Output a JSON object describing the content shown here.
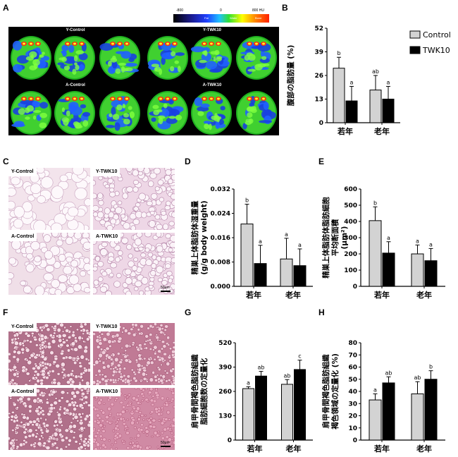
{
  "panel_letters": [
    "A",
    "B",
    "C",
    "D",
    "E",
    "F",
    "G",
    "H"
  ],
  "colorbar": {
    "labels": [
      "-800",
      "0",
      "800 HU"
    ],
    "inner_labels": [
      "Fat",
      "Water",
      "Bone"
    ]
  },
  "ct_headers": [
    "Y-Control",
    "Y-TWK10",
    "A-Control",
    "A-TWK10"
  ],
  "histo_labels_c": [
    "Y-Control",
    "Y-TWK10",
    "A-Control",
    "A-TWK10"
  ],
  "histo_labels_f": [
    "Y-Control",
    "Y-TWK10",
    "A-Control",
    "A-TWK10"
  ],
  "scale_bar": "50μm",
  "legend": [
    "Control",
    "TWK10"
  ],
  "colors": {
    "control": "#d3d3d3",
    "twk10": "#000000"
  },
  "chart_data": [
    {
      "id": "B",
      "type": "bar",
      "categories": [
        "若年",
        "老年"
      ],
      "ylabel": "腹部の脂肪量 (%)",
      "yticks": [
        "0",
        "13",
        "26",
        "39",
        "52"
      ],
      "ylim": [
        0,
        52
      ],
      "series": [
        {
          "name": "Control",
          "values": [
            30,
            18
          ],
          "err": [
            6,
            8
          ]
        },
        {
          "name": "TWK10",
          "values": [
            12,
            13
          ],
          "err": [
            8,
            7
          ]
        }
      ],
      "annotations": [
        "b",
        "a",
        "ab",
        "a"
      ]
    },
    {
      "id": "D",
      "type": "bar",
      "categories": [
        "若年",
        "老年"
      ],
      "ylabel": "精巣上体脂肪体湿重量 (g/g body weight)",
      "yticks": [
        "0.000",
        "0.008",
        "0.016",
        "0.024",
        "0.032"
      ],
      "ylim": [
        0,
        0.032
      ],
      "series": [
        {
          "name": "Control",
          "values": [
            0.0205,
            0.009
          ],
          "err": [
            0.0065,
            0.0068
          ]
        },
        {
          "name": "TWK10",
          "values": [
            0.0075,
            0.0068
          ],
          "err": [
            0.006,
            0.0055
          ]
        }
      ],
      "annotations": [
        "b",
        "a",
        "a",
        "a"
      ]
    },
    {
      "id": "E",
      "type": "bar",
      "categories": [
        "若年",
        "老年"
      ],
      "ylabel": "精巣上体脂肪体脂肪細胞 平均断面積 (μm²)",
      "yticks": [
        "0",
        "100",
        "200",
        "300",
        "400",
        "500",
        "600"
      ],
      "ylim": [
        0,
        600
      ],
      "series": [
        {
          "name": "Control",
          "values": [
            405,
            200
          ],
          "err": [
            85,
            55
          ]
        },
        {
          "name": "TWK10",
          "values": [
            205,
            158
          ],
          "err": [
            70,
            75
          ]
        }
      ],
      "annotations": [
        "b",
        "a",
        "a",
        "a"
      ]
    },
    {
      "id": "G",
      "type": "bar",
      "categories": [
        "若年",
        "老年"
      ],
      "ylabel": "肩甲骨間褐色脂肪組織 脂肪細胞数の定量化",
      "yticks": [
        "0",
        "130",
        "260",
        "390",
        "520"
      ],
      "ylim": [
        0,
        520
      ],
      "series": [
        {
          "name": "Control",
          "values": [
            275,
            298
          ],
          "err": [
            10,
            25
          ]
        },
        {
          "name": "TWK10",
          "values": [
            342,
            377
          ],
          "err": [
            25,
            50
          ]
        }
      ],
      "annotations": [
        "a",
        "ab",
        "ab",
        "c"
      ]
    },
    {
      "id": "H",
      "type": "bar",
      "categories": [
        "若年",
        "老年"
      ],
      "ylabel": "肩甲骨間褐色脂肪組織 褐色領域の定量化 (%)",
      "yticks": [
        "0",
        "10",
        "20",
        "30",
        "40",
        "50",
        "60",
        "70",
        "80"
      ],
      "ylim": [
        0,
        80
      ],
      "series": [
        {
          "name": "Control",
          "values": [
            33,
            38
          ],
          "err": [
            5,
            10
          ]
        },
        {
          "name": "TWK10",
          "values": [
            47,
            50
          ],
          "err": [
            5,
            7
          ]
        }
      ],
      "annotations": [
        "a",
        "ab",
        "ab",
        "b"
      ]
    }
  ]
}
